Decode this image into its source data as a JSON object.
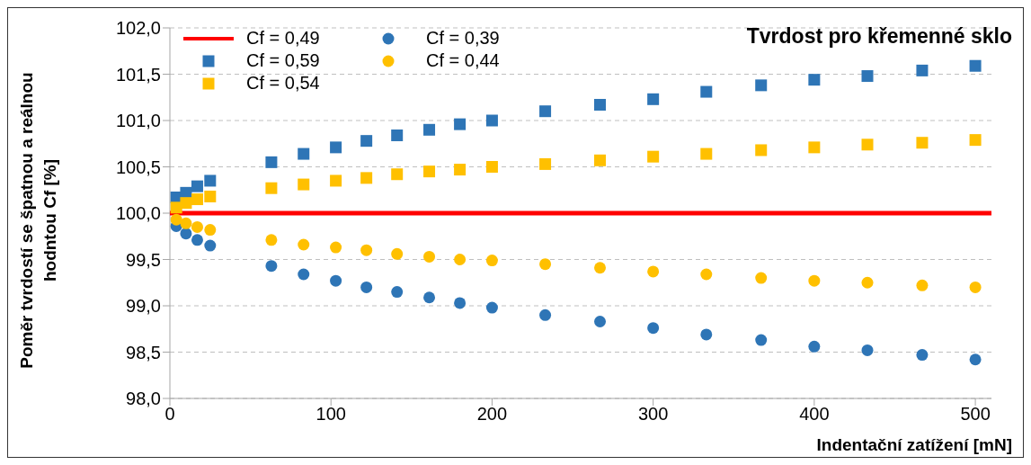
{
  "chart_data": {
    "type": "scatter",
    "title": "Tvrdost pro křemenné sklo",
    "xlabel": "Indentační zatížení [mN]",
    "ylabel": "Poměr tvrdostí se špatnou a reálnou hodntou Cf [%]",
    "xlim": [
      0,
      510
    ],
    "xticks": [
      0,
      100,
      200,
      300,
      400,
      500
    ],
    "ylim": [
      98,
      102
    ],
    "yticks": [
      {
        "value": 98,
        "label": "98,0"
      },
      {
        "value": 98.5,
        "label": "98,5"
      },
      {
        "value": 99,
        "label": "99,0"
      },
      {
        "value": 99.5,
        "label": "99,5"
      },
      {
        "value": 100,
        "label": "100,0"
      },
      {
        "value": 100.5,
        "label": "100,5"
      },
      {
        "value": 101,
        "label": "101,0"
      },
      {
        "value": 101.5,
        "label": "101,5"
      },
      {
        "value": 102,
        "label": "102,0"
      }
    ],
    "grid": "y",
    "legend": "top left",
    "x": [
      4,
      10,
      17,
      25,
      63,
      83,
      103,
      122,
      141,
      161,
      180,
      200,
      233,
      267,
      300,
      333,
      367,
      400,
      433,
      467,
      500
    ],
    "series": [
      {
        "name": "Cf = 0,49",
        "type": "line",
        "color": "#ff0000",
        "marker": "none",
        "x": [
          0,
          510
        ],
        "values": [
          100,
          100
        ]
      },
      {
        "name": "Cf = 0,39",
        "color": "#2e75b6",
        "marker": "circle",
        "values": [
          99.86,
          99.78,
          99.71,
          99.65,
          99.43,
          99.34,
          99.27,
          99.2,
          99.15,
          99.09,
          99.03,
          98.98,
          98.9,
          98.83,
          98.76,
          98.69,
          98.63,
          98.56,
          98.52,
          98.47,
          98.42
        ]
      },
      {
        "name": "Cf = 0,59",
        "color": "#2e75b6",
        "marker": "square",
        "values": [
          100.17,
          100.22,
          100.29,
          100.35,
          100.55,
          100.64,
          100.71,
          100.78,
          100.84,
          100.9,
          100.96,
          101.0,
          101.1,
          101.17,
          101.23,
          101.31,
          101.38,
          101.44,
          101.48,
          101.54,
          101.59
        ]
      },
      {
        "name": "Cf = 0,44",
        "color": "#ffc000",
        "marker": "circle",
        "values": [
          99.93,
          99.89,
          99.85,
          99.82,
          99.71,
          99.66,
          99.63,
          99.6,
          99.56,
          99.53,
          99.5,
          99.49,
          99.45,
          99.41,
          99.37,
          99.34,
          99.3,
          99.27,
          99.25,
          99.22,
          99.2
        ]
      },
      {
        "name": "Cf = 0,54",
        "color": "#ffc000",
        "marker": "square",
        "values": [
          100.06,
          100.11,
          100.15,
          100.18,
          100.27,
          100.31,
          100.35,
          100.38,
          100.42,
          100.45,
          100.47,
          100.5,
          100.53,
          100.57,
          100.61,
          100.64,
          100.68,
          100.71,
          100.74,
          100.76,
          100.79
        ]
      }
    ]
  }
}
